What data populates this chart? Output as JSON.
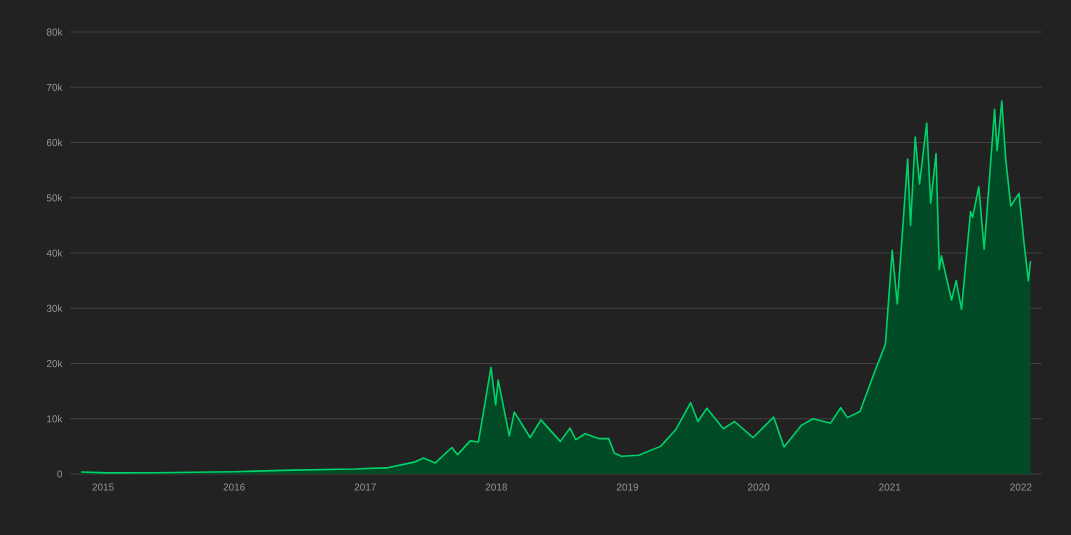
{
  "chart_data": {
    "type": "area",
    "x": [
      "2014-11-01",
      "2015-01-15",
      "2015-06-01",
      "2015-11-01",
      "2016-01-01",
      "2016-06-15",
      "2016-12-01",
      "2017-01-01",
      "2017-03-01",
      "2017-05-20",
      "2017-06-12",
      "2017-07-15",
      "2017-08-30",
      "2017-09-15",
      "2017-10-20",
      "2017-11-12",
      "2017-12-17",
      "2017-12-30",
      "2018-01-06",
      "2018-02-06",
      "2018-02-20",
      "2018-04-05",
      "2018-05-05",
      "2018-06-28",
      "2018-07-25",
      "2018-08-10",
      "2018-09-05",
      "2018-10-15",
      "2018-11-10",
      "2018-11-25",
      "2018-12-15",
      "2019-02-01",
      "2019-04-03",
      "2019-05-15",
      "2019-06-26",
      "2019-07-16",
      "2019-08-10",
      "2019-09-25",
      "2019-10-26",
      "2019-12-17",
      "2020-02-12",
      "2020-03-12",
      "2020-04-29",
      "2020-06-01",
      "2020-07-20",
      "2020-08-17",
      "2020-09-05",
      "2020-10-10",
      "2020-11-20",
      "2020-12-20",
      "2021-01-08",
      "2021-01-22",
      "2021-02-20",
      "2021-02-28",
      "2021-03-13",
      "2021-03-25",
      "2021-04-14",
      "2021-04-25",
      "2021-05-10",
      "2021-05-19",
      "2021-05-25",
      "2021-06-22",
      "2021-07-05",
      "2021-07-20",
      "2021-08-14",
      "2021-08-20",
      "2021-09-06",
      "2021-09-21",
      "2021-10-20",
      "2021-10-27",
      "2021-11-09",
      "2021-11-20",
      "2021-12-04",
      "2021-12-27",
      "2022-01-10",
      "2022-01-22",
      "2022-01-28"
    ],
    "series": [
      {
        "color": "#00d26a",
        "values": [
          350,
          200,
          230,
          350,
          420,
          700,
          900,
          1000,
          1100,
          2200,
          2900,
          2000,
          4800,
          3500,
          6000,
          5800,
          19300,
          12500,
          17000,
          6900,
          11200,
          6600,
          9800,
          5900,
          8300,
          6200,
          7300,
          6400,
          6400,
          3800,
          3200,
          3400,
          5000,
          8000,
          12900,
          9500,
          11900,
          8200,
          9500,
          6600,
          10300,
          4900,
          8800,
          10000,
          9200,
          12000,
          10200,
          11300,
          18500,
          23500,
          40500,
          30800,
          57000,
          45000,
          61000,
          52500,
          63500,
          49000,
          58000,
          37000,
          39500,
          31500,
          35000,
          29800,
          47500,
          46500,
          52000,
          40700,
          66000,
          58500,
          67500,
          57000,
          48500,
          50800,
          41800,
          35000,
          38500
        ]
      }
    ],
    "xlim": [
      "2014-10-01",
      "2022-03-01"
    ],
    "xticks": [
      "2015",
      "2016",
      "2017",
      "2018",
      "2019",
      "2020",
      "2021",
      "2022"
    ],
    "ylim": [
      0,
      80000
    ],
    "yticks": [
      {
        "value": 0,
        "label": "0"
      },
      {
        "value": 10000,
        "label": "10k"
      },
      {
        "value": 20000,
        "label": "20k"
      },
      {
        "value": 30000,
        "label": "30k"
      },
      {
        "value": 40000,
        "label": "40k"
      },
      {
        "value": 50000,
        "label": "50k"
      },
      {
        "value": 60000,
        "label": "60k"
      },
      {
        "value": 70000,
        "label": "70k"
      },
      {
        "value": 80000,
        "label": "80k"
      }
    ],
    "grid": "y"
  }
}
